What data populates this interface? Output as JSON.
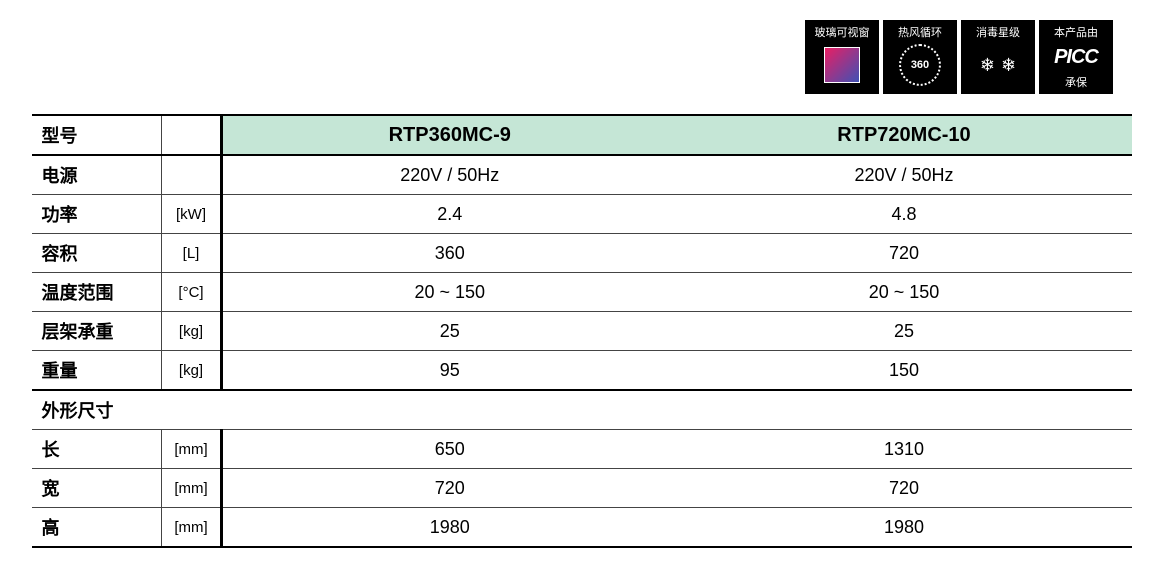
{
  "badges": [
    {
      "title": "玻璃可视窗",
      "type": "gradient"
    },
    {
      "title": "热风循环",
      "type": "circle",
      "text": "360"
    },
    {
      "title": "消毒星级",
      "type": "stars"
    },
    {
      "title": "本产品由",
      "type": "picc",
      "brand": "PICC",
      "bottom": "承保"
    }
  ],
  "table": {
    "model_label": "型号",
    "models": [
      "RTP360MC-9",
      "RTP720MC-10"
    ],
    "rows": [
      {
        "label": "电源",
        "unit": "",
        "v1": "220V / 50Hz",
        "v2": "220V / 50Hz"
      },
      {
        "label": "功率",
        "unit": "[kW]",
        "v1": "2.4",
        "v2": "4.8"
      },
      {
        "label": "容积",
        "unit": "[L]",
        "v1": "360",
        "v2": "720"
      },
      {
        "label": "温度范围",
        "unit": "[°C]",
        "v1": "20 ~ 150",
        "v2": "20 ~ 150"
      },
      {
        "label": "层架承重",
        "unit": "[kg]",
        "v1": "25",
        "v2": "25"
      },
      {
        "label": "重量",
        "unit": "[kg]",
        "v1": "95",
        "v2": "150"
      }
    ],
    "dim_header": "外形尺寸",
    "dims": [
      {
        "label": "长",
        "unit": "[mm]",
        "v1": "650",
        "v2": "1310"
      },
      {
        "label": "宽",
        "unit": "[mm]",
        "v1": "720",
        "v2": "720"
      },
      {
        "label": "高",
        "unit": "[mm]",
        "v1": "1980",
        "v2": "1980"
      }
    ]
  },
  "styling": {
    "header_bg": "#c5e6d6",
    "border_color": "#444444",
    "heavy_border": "#000000",
    "badge_bg": "#000000",
    "badge_fg": "#ffffff",
    "gradient_from": "#e91e63",
    "gradient_to": "#3f51b5",
    "font_size_body": 18,
    "font_size_header": 20,
    "font_size_unit": 15,
    "font_size_badge": 11
  }
}
